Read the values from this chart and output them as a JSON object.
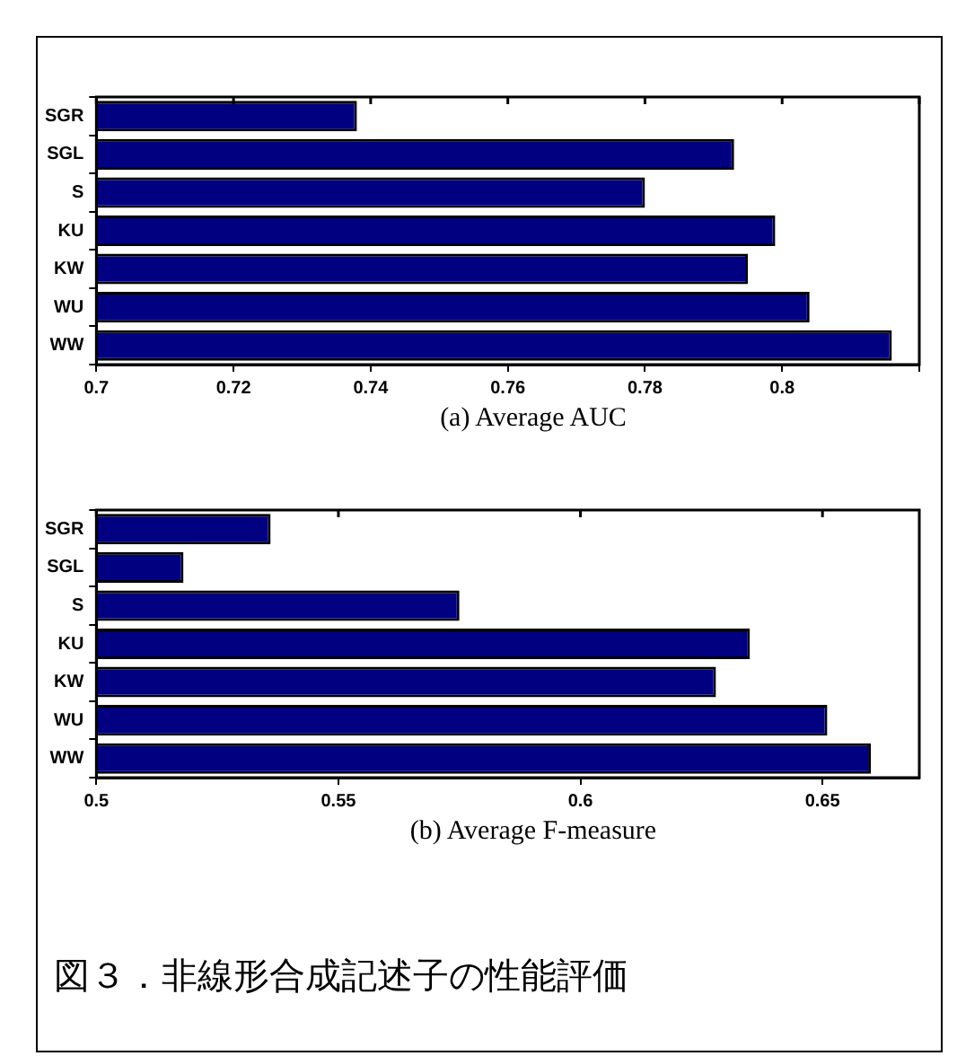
{
  "chart_data": [
    {
      "type": "bar",
      "orientation": "horizontal",
      "xlabel": "(a) Average AUC",
      "categories": [
        "SGR",
        "SGL",
        "S",
        "KU",
        "KW",
        "WU",
        "WW"
      ],
      "values": [
        0.738,
        0.793,
        0.78,
        0.799,
        0.795,
        0.804,
        0.816
      ],
      "color": "#000080",
      "xlim": [
        0.7,
        0.82
      ],
      "xticks": [
        0.7,
        0.72,
        0.74,
        0.76,
        0.78,
        0.8,
        {
          "value": 0.82,
          "label": null
        }
      ],
      "grid": false,
      "legend": false
    },
    {
      "type": "bar",
      "orientation": "horizontal",
      "xlabel": "(b) Average F-measure",
      "categories": [
        "SGR",
        "SGL",
        "S",
        "KU",
        "KW",
        "WU",
        "WW"
      ],
      "values": [
        0.536,
        0.518,
        0.575,
        0.635,
        0.628,
        0.651,
        0.66
      ],
      "color": "#000080",
      "xlim": [
        0.5,
        0.67
      ],
      "xticks": [
        0.5,
        0.55,
        0.6,
        0.65
      ],
      "grid": false,
      "legend": false,
      "annotations": [
        "図３．非線形合成記述子の性能評価"
      ]
    }
  ]
}
